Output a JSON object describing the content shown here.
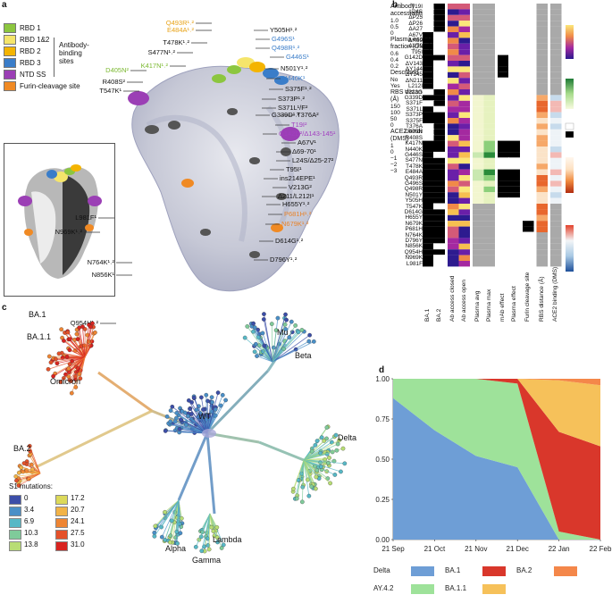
{
  "panels": {
    "a": "a",
    "b": "b",
    "c": "c",
    "d": "d"
  },
  "panel_a": {
    "legend": [
      {
        "label": "RBD 1",
        "color": "#8cc63f"
      },
      {
        "label": "RBD 1&2",
        "color": "#f5e56b"
      },
      {
        "label": "RBD 2",
        "color": "#f4b400"
      },
      {
        "label": "RBD 3",
        "color": "#3a7dc9"
      },
      {
        "label": "NTD SS",
        "color": "#9b3fb5"
      },
      {
        "label": "Furin-cleavage site",
        "color": "#f08a24"
      }
    ],
    "binding_label": "Antibody-\nbinding\nsites",
    "labels_left": [
      {
        "text": "Q493R¹˒²",
        "color": "#e8a317"
      },
      {
        "text": "E484A¹˒²",
        "color": "#e8a317"
      },
      {
        "text": "T478K¹˒²",
        "color": "#111111"
      },
      {
        "text": "S477N¹˒²",
        "color": "#111111"
      },
      {
        "text": "K417N¹˒²",
        "color": "#7ab82f"
      },
      {
        "text": "D405N²",
        "color": "#7ab82f"
      },
      {
        "text": "R408S²",
        "color": "#111111"
      },
      {
        "text": "T547K¹",
        "color": "#111111"
      },
      {
        "text": "L981F¹",
        "color": "#111111"
      },
      {
        "text": "N969K¹˒²",
        "color": "#111111"
      },
      {
        "text": "N764K¹˒²",
        "color": "#111111"
      },
      {
        "text": "N856K¹",
        "color": "#111111"
      },
      {
        "text": "Q954H¹˒²",
        "color": "#111111"
      }
    ],
    "labels_right": [
      {
        "text": "Y505H¹˒²",
        "color": "#111111"
      },
      {
        "text": "G496S¹",
        "color": "#3a7dc9"
      },
      {
        "text": "Q498R¹˒²",
        "color": "#3a7dc9"
      },
      {
        "text": "G446S¹",
        "color": "#3a7dc9"
      },
      {
        "text": "N501Y¹˒²",
        "color": "#111111"
      },
      {
        "text": "N440K¹",
        "color": "#3a7dc9"
      },
      {
        "text": "S375F¹˒²",
        "color": "#111111"
      },
      {
        "text": "S373P¹˒²",
        "color": "#111111"
      },
      {
        "text": "S371L¹/F²",
        "color": "#111111"
      },
      {
        "text": "G339D¹˒²",
        "color": "#111111"
      },
      {
        "text": "T376A²",
        "color": "#111111"
      },
      {
        "text": "T19I²",
        "color": "#a23fc0"
      },
      {
        "text": "G142D²/Δ143-145¹",
        "color": "#a23fc0"
      },
      {
        "text": "A67V¹",
        "color": "#111111"
      },
      {
        "text": "Δ69-70¹",
        "color": "#111111"
      },
      {
        "text": "L24S/Δ25-27²",
        "color": "#111111"
      },
      {
        "text": "T95I¹",
        "color": "#111111"
      },
      {
        "text": "ins214EPE¹",
        "color": "#111111"
      },
      {
        "text": "V213G²",
        "color": "#111111"
      },
      {
        "text": "Δ211/L212I¹",
        "color": "#111111"
      },
      {
        "text": "H655Y¹˒²",
        "color": "#111111"
      },
      {
        "text": "P681H¹˒²",
        "color": "#e8832a"
      },
      {
        "text": "N679K¹˒²",
        "color": "#e8832a"
      },
      {
        "text": "D614G¹˒²",
        "color": "#111111"
      },
      {
        "text": "D796Y¹˒²",
        "color": "#111111"
      }
    ]
  },
  "panel_b": {
    "rows": [
      "T19I",
      "L24S",
      "ΔP25",
      "ΔP26",
      "ΔA27",
      "A67V",
      "ΔH69",
      "ΔV70",
      "T95I",
      "G142D",
      "ΔV143",
      "ΔY144",
      "ΔY145",
      "ΔN211",
      "L212I",
      "V213G",
      "G339D",
      "S371F",
      "S371L",
      "S373P",
      "S375F",
      "T376A",
      "D405N",
      "R408S",
      "K417N",
      "N440K",
      "G446S",
      "S477N",
      "T478K",
      "E484A",
      "Q493R",
      "G496S",
      "Q498R",
      "N501Y",
      "Y505H",
      "T547K",
      "D614G",
      "H655Y",
      "N679K",
      "P681H",
      "N764K",
      "D796Y",
      "N856K",
      "Q954H",
      "N969K",
      "L981F"
    ],
    "columns": [
      "BA.1",
      "BA.2",
      "Ab access closed",
      "Ab access open",
      "Plasma avg",
      "Plasma max",
      "mAb effect",
      "Plasma effect",
      "Furin cleavage site",
      "RBS distance (Å)",
      "ACE2 binding (DMS)"
    ],
    "legend_access": {
      "title": "Antibody accessibility",
      "ticks": [
        "1.0",
        "0.5",
        "0"
      ]
    },
    "legend_escape": {
      "title": "Plasma escape fraction (DMS)",
      "ticks": [
        "0.6",
        "0.4",
        "0.2"
      ]
    },
    "legend_described": {
      "title": "Described",
      "items": [
        "No",
        "Yes"
      ]
    },
    "legend_rbs": {
      "title": "RBS distance (Å)",
      "ticks": [
        "150",
        "100",
        "50",
        "0"
      ]
    },
    "legend_ace2": {
      "title": "ACE2 binding (DMS)",
      "ticks": [
        "1",
        "0",
        "−1",
        "−2",
        "−3"
      ]
    }
  },
  "panel_c": {
    "clade_labels": [
      "BA.1",
      "BA.1.1",
      "Omicron",
      "BA.2",
      "WT",
      "Mu",
      "Beta",
      "Delta",
      "Alpha",
      "Lambda",
      "Gamma"
    ],
    "legend_title": "S1 mutations:",
    "legend": [
      {
        "value": "0",
        "color": "#3c4ea8"
      },
      {
        "value": "3.4",
        "color": "#4a8fc7"
      },
      {
        "value": "6.9",
        "color": "#57b8c6"
      },
      {
        "value": "10.3",
        "color": "#7fcb9a"
      },
      {
        "value": "13.8",
        "color": "#b8dd74"
      },
      {
        "value": "17.2",
        "color": "#dcd95a"
      },
      {
        "value": "20.7",
        "color": "#f2b347"
      },
      {
        "value": "24.1",
        "color": "#ee8533"
      },
      {
        "value": "27.5",
        "color": "#e4512a"
      },
      {
        "value": "31.0",
        "color": "#d8231f"
      }
    ]
  },
  "chart_data": {
    "type": "area",
    "title": "",
    "xlabel": "",
    "ylabel": "",
    "x": [
      "21 Sep",
      "21 Oct",
      "21 Nov",
      "21 Dec",
      "22 Jan",
      "22 Feb"
    ],
    "ylim": [
      0,
      1
    ],
    "yticks": [
      "0.00",
      "0.25",
      "0.50",
      "0.75",
      "1.00"
    ],
    "series": [
      {
        "name": "Delta",
        "color": "#6e9ed6",
        "values": [
          0.88,
          0.68,
          0.52,
          0.45,
          0.0,
          0.0
        ]
      },
      {
        "name": "AY.4.2",
        "color": "#9ee29a",
        "values": [
          0.12,
          0.32,
          0.48,
          0.52,
          0.05,
          0.0
        ]
      },
      {
        "name": "BA.1",
        "color": "#d9372b",
        "values": [
          0.0,
          0.0,
          0.0,
          0.03,
          0.62,
          0.58
        ]
      },
      {
        "name": "BA.1.1",
        "color": "#f6c15a",
        "values": [
          0.0,
          0.0,
          0.0,
          0.0,
          0.32,
          0.38
        ]
      },
      {
        "name": "BA.2",
        "color": "#f4874a",
        "values": [
          0.0,
          0.0,
          0.0,
          0.0,
          0.01,
          0.04
        ]
      }
    ]
  }
}
